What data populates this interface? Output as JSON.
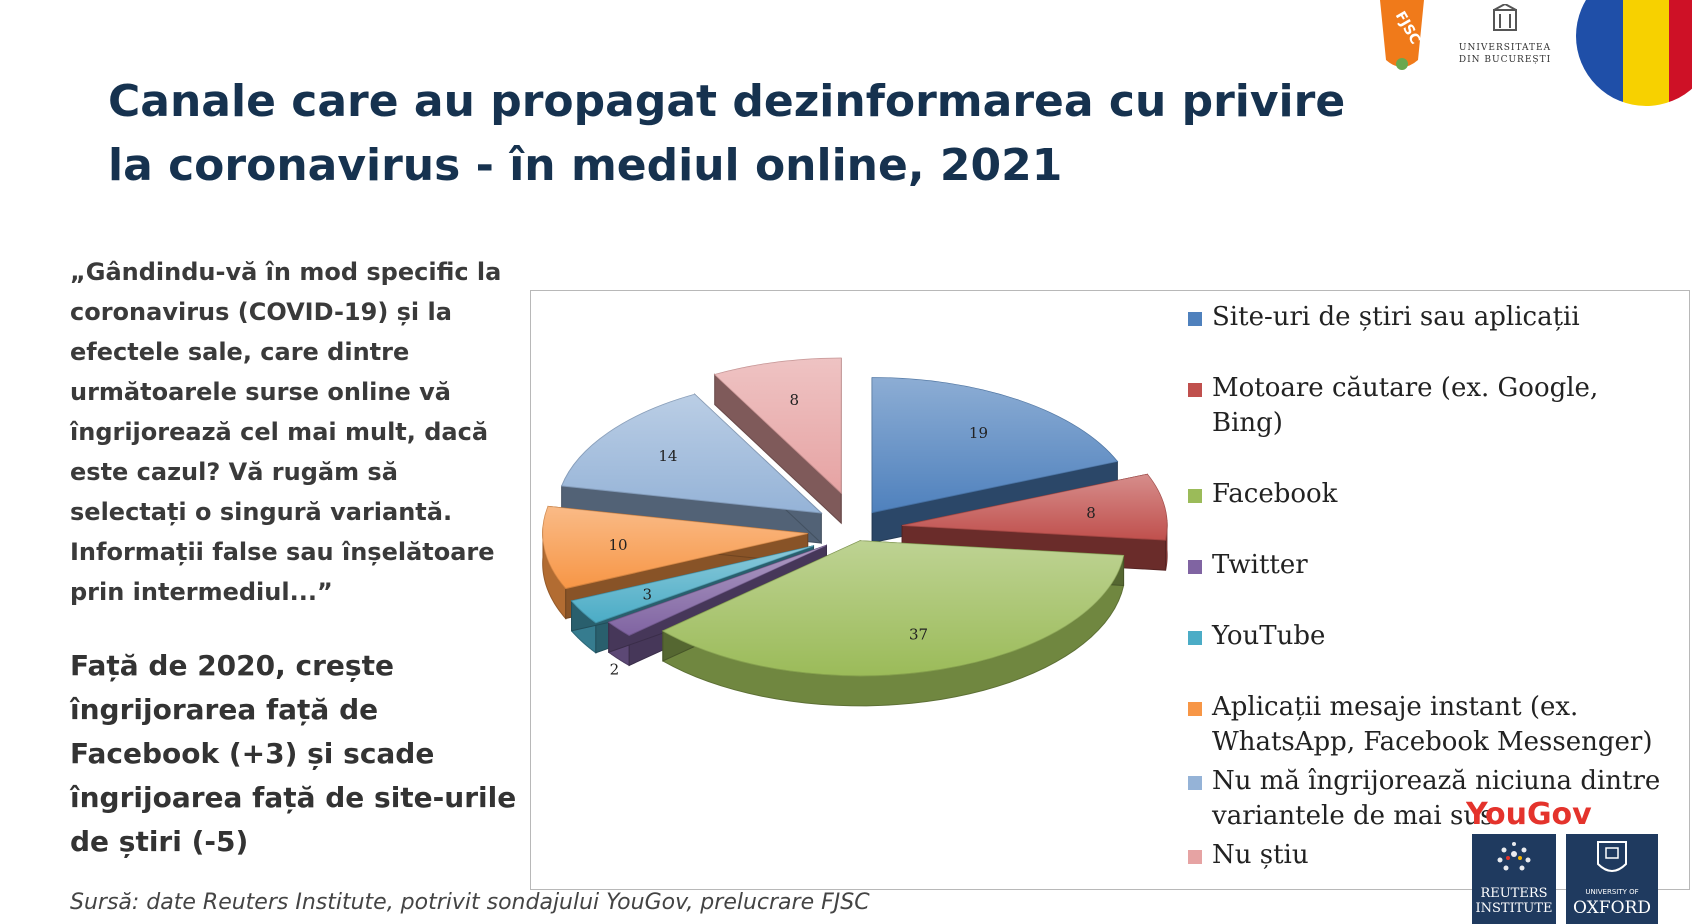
{
  "title": "Canale care au propagat dezinformarea cu privire la coronavirus - în mediul online, 2021",
  "question_text": "„Gândindu-vă în mod specific la coronavirus (COVID-19) și la efectele sale, care dintre următoarele surse online vă îngrijorează cel mai mult, dacă este cazul? Vă rugăm să selectați o singură variantă. Informații false sau înșelătoare prin intermediul...”",
  "note_text": "Față de 2020, crește îngrijorarea față de Facebook (+3) și scade îngrijoarea față de site-urile de știri (-5)",
  "source_text": "Sursă: date Reuters Institute, potrivit sondajului YouGov, prelucrare FJSC",
  "logos": {
    "fjsc": "FJSC",
    "unibuc": "UNIVERSITATEA DIN BUCUREȘTI",
    "yougov": "YouGov",
    "reuters": "REUTERS INSTITUTE",
    "oxford": "OXFORD",
    "oxford_small": "UNIVERSITY OF"
  },
  "chart_data": {
    "type": "pie",
    "title": "",
    "categories": [
      "Site-uri de știri sau aplicații",
      "Motoare căutare (ex. Google, Bing)",
      "Facebook",
      "Twitter",
      "YouTube",
      "Aplicații mesaje instant (ex. WhatsApp, Facebook Messenger)",
      "Nu mă îngrijorează niciuna dintre variantele de mai sus",
      "Nu știu"
    ],
    "values": [
      19,
      8,
      37,
      2,
      3,
      10,
      14,
      8
    ],
    "colors": [
      "#4f81bd",
      "#c0504d",
      "#9bbb59",
      "#8064a2",
      "#4bacc6",
      "#f79646",
      "#95b3d7",
      "#e6a3a3"
    ],
    "legend": "right",
    "exploded": true,
    "style": "3d"
  }
}
